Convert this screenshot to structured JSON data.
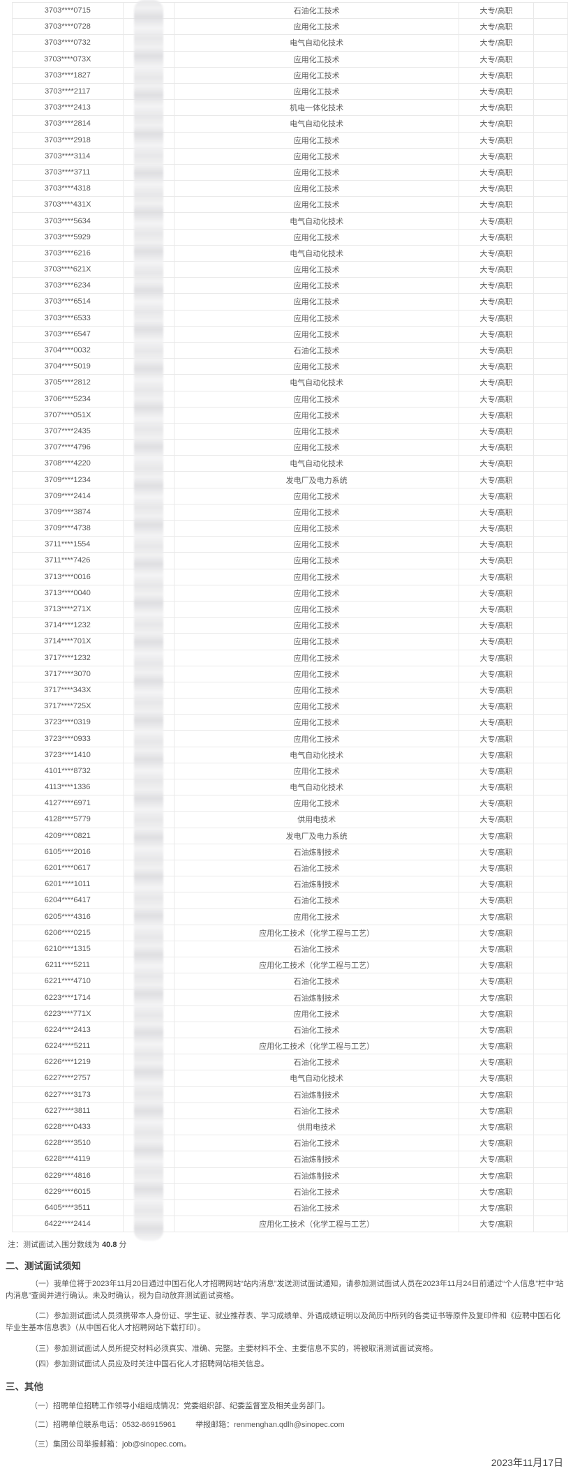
{
  "table": {
    "rows": [
      [
        "3703****0715",
        "石油化工技术",
        "大专/高职"
      ],
      [
        "3703****0728",
        "应用化工技术",
        "大专/高职"
      ],
      [
        "3703****0732",
        "电气自动化技术",
        "大专/高职"
      ],
      [
        "3703****073X",
        "应用化工技术",
        "大专/高职"
      ],
      [
        "3703****1827",
        "应用化工技术",
        "大专/高职"
      ],
      [
        "3703****2117",
        "应用化工技术",
        "大专/高职"
      ],
      [
        "3703****2413",
        "机电一体化技术",
        "大专/高职"
      ],
      [
        "3703****2814",
        "电气自动化技术",
        "大专/高职"
      ],
      [
        "3703****2918",
        "应用化工技术",
        "大专/高职"
      ],
      [
        "3703****3114",
        "应用化工技术",
        "大专/高职"
      ],
      [
        "3703****3711",
        "应用化工技术",
        "大专/高职"
      ],
      [
        "3703****4318",
        "应用化工技术",
        "大专/高职"
      ],
      [
        "3703****431X",
        "应用化工技术",
        "大专/高职"
      ],
      [
        "3703****5634",
        "电气自动化技术",
        "大专/高职"
      ],
      [
        "3703****5929",
        "应用化工技术",
        "大专/高职"
      ],
      [
        "3703****6216",
        "电气自动化技术",
        "大专/高职"
      ],
      [
        "3703****621X",
        "应用化工技术",
        "大专/高职"
      ],
      [
        "3703****6234",
        "应用化工技术",
        "大专/高职"
      ],
      [
        "3703****6514",
        "应用化工技术",
        "大专/高职"
      ],
      [
        "3703****6533",
        "应用化工技术",
        "大专/高职"
      ],
      [
        "3703****6547",
        "应用化工技术",
        "大专/高职"
      ],
      [
        "3704****0032",
        "石油化工技术",
        "大专/高职"
      ],
      [
        "3704****5019",
        "应用化工技术",
        "大专/高职"
      ],
      [
        "3705****2812",
        "电气自动化技术",
        "大专/高职"
      ],
      [
        "3706****5234",
        "应用化工技术",
        "大专/高职"
      ],
      [
        "3707****051X",
        "应用化工技术",
        "大专/高职"
      ],
      [
        "3707****2435",
        "应用化工技术",
        "大专/高职"
      ],
      [
        "3707****4796",
        "应用化工技术",
        "大专/高职"
      ],
      [
        "3708****4220",
        "电气自动化技术",
        "大专/高职"
      ],
      [
        "3709****1234",
        "发电厂及电力系统",
        "大专/高职"
      ],
      [
        "3709****2414",
        "应用化工技术",
        "大专/高职"
      ],
      [
        "3709****3874",
        "应用化工技术",
        "大专/高职"
      ],
      [
        "3709****4738",
        "应用化工技术",
        "大专/高职"
      ],
      [
        "3711****1554",
        "应用化工技术",
        "大专/高职"
      ],
      [
        "3711****7426",
        "应用化工技术",
        "大专/高职"
      ],
      [
        "3713****0016",
        "应用化工技术",
        "大专/高职"
      ],
      [
        "3713****0040",
        "应用化工技术",
        "大专/高职"
      ],
      [
        "3713****271X",
        "应用化工技术",
        "大专/高职"
      ],
      [
        "3714****1232",
        "应用化工技术",
        "大专/高职"
      ],
      [
        "3714****701X",
        "应用化工技术",
        "大专/高职"
      ],
      [
        "3717****1232",
        "应用化工技术",
        "大专/高职"
      ],
      [
        "3717****3070",
        "应用化工技术",
        "大专/高职"
      ],
      [
        "3717****343X",
        "应用化工技术",
        "大专/高职"
      ],
      [
        "3717****725X",
        "应用化工技术",
        "大专/高职"
      ],
      [
        "3723****0319",
        "应用化工技术",
        "大专/高职"
      ],
      [
        "3723****0933",
        "应用化工技术",
        "大专/高职"
      ],
      [
        "3723****1410",
        "电气自动化技术",
        "大专/高职"
      ],
      [
        "4101****8732",
        "应用化工技术",
        "大专/高职"
      ],
      [
        "4113****1336",
        "电气自动化技术",
        "大专/高职"
      ],
      [
        "4127****6971",
        "应用化工技术",
        "大专/高职"
      ],
      [
        "4128****5779",
        "供用电技术",
        "大专/高职"
      ],
      [
        "4209****0821",
        "发电厂及电力系统",
        "大专/高职"
      ],
      [
        "6105****2016",
        "石油炼制技术",
        "大专/高职"
      ],
      [
        "6201****0617",
        "石油化工技术",
        "大专/高职"
      ],
      [
        "6201****1011",
        "石油炼制技术",
        "大专/高职"
      ],
      [
        "6204****6417",
        "石油化工技术",
        "大专/高职"
      ],
      [
        "6205****4316",
        "应用化工技术",
        "大专/高职"
      ],
      [
        "6206****0215",
        "应用化工技术（化学工程与工艺）",
        "大专/高职"
      ],
      [
        "6210****1315",
        "石油化工技术",
        "大专/高职"
      ],
      [
        "6211****5211",
        "应用化工技术（化学工程与工艺）",
        "大专/高职"
      ],
      [
        "6221****4710",
        "石油化工技术",
        "大专/高职"
      ],
      [
        "6223****1714",
        "石油炼制技术",
        "大专/高职"
      ],
      [
        "6223****771X",
        "应用化工技术",
        "大专/高职"
      ],
      [
        "6224****2413",
        "石油化工技术",
        "大专/高职"
      ],
      [
        "6224****5211",
        "应用化工技术（化学工程与工艺）",
        "大专/高职"
      ],
      [
        "6226****1219",
        "石油化工技术",
        "大专/高职"
      ],
      [
        "6227****2757",
        "电气自动化技术",
        "大专/高职"
      ],
      [
        "6227****3173",
        "石油炼制技术",
        "大专/高职"
      ],
      [
        "6227****3811",
        "石油化工技术",
        "大专/高职"
      ],
      [
        "6228****0433",
        "供用电技术",
        "大专/高职"
      ],
      [
        "6228****3510",
        "石油化工技术",
        "大专/高职"
      ],
      [
        "6228****4119",
        "石油炼制技术",
        "大专/高职"
      ],
      [
        "6229****4816",
        "石油炼制技术",
        "大专/高职"
      ],
      [
        "6229****6015",
        "石油化工技术",
        "大专/高职"
      ],
      [
        "6405****3511",
        "石油化工技术",
        "大专/高职"
      ],
      [
        "6422****2414",
        "应用化工技术（化学工程与工艺）",
        "大专/高职"
      ]
    ]
  },
  "note": {
    "prefix": "注：测试面试入围分数线为 ",
    "score": "40.8",
    "suffix": " 分"
  },
  "section2": {
    "heading": "二、测试面试须知",
    "p1": "（一）我单位将于2023年11月20日通过中国石化人才招聘网站“站内消息”发送测试面试通知，请参加测试面试人员在2023年11月24日前通过“个人信息”栏中“站内消息”查阅并进行确认。未及时确认，视为自动放弃测试面试资格。",
    "p2": "（二）参加测试面试人员须携带本人身份证、学生证、就业推荐表、学习成绩单、外语成绩证明以及简历中所列的各类证书等原件及复印件和《应聘中国石化毕业生基本信息表》（从中国石化人才招聘网站下载打印）。",
    "p3": "（三）参加测试面试人员所提交材料必须真实、准确、完整。主要材料不全、主要信息不实的，将被取消测试面试资格。",
    "p4": "（四）参加测试面试人员应及时关注中国石化人才招聘网站相关信息。"
  },
  "section3": {
    "heading": "三、其他",
    "item1": "（一）招聘单位招聘工作领导小组组成情况：党委组织部、纪委监督室及相关业务部门。",
    "item2_label": "（二）招聘单位联系电话：0532-86915961",
    "item2_report_label": "举报邮箱：",
    "item2_email": "renmenghan.qdlh@sinopec.com",
    "item3_label": "（三）集团公司举报邮箱：",
    "item3_email": "job@sinopec.com",
    "item3_suffix": "。"
  },
  "date": "2023年11月17日"
}
